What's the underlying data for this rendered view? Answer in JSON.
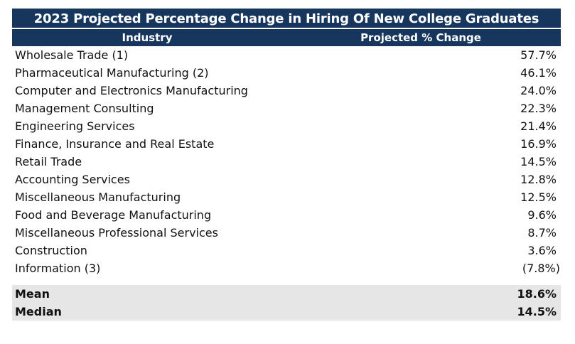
{
  "chart_data": {
    "type": "table",
    "title": "2023 Projected Percentage Change in Hiring Of New College Graduates",
    "columns": [
      "Industry",
      "Projected % Change"
    ],
    "rows": [
      {
        "industry": "Wholesale Trade (1)",
        "value": 57.7,
        "display": "57.7%"
      },
      {
        "industry": "Pharmaceutical Manufacturing (2)",
        "value": 46.1,
        "display": "46.1%"
      },
      {
        "industry": "Computer and Electronics Manufacturing",
        "value": 24.0,
        "display": "24.0%"
      },
      {
        "industry": "Management Consulting",
        "value": 22.3,
        "display": "22.3%"
      },
      {
        "industry": "Engineering Services",
        "value": 21.4,
        "display": "21.4%"
      },
      {
        "industry": "Finance, Insurance and Real Estate",
        "value": 16.9,
        "display": "16.9%"
      },
      {
        "industry": "Retail Trade",
        "value": 14.5,
        "display": "14.5%"
      },
      {
        "industry": "Accounting Services",
        "value": 12.8,
        "display": "12.8%"
      },
      {
        "industry": "Miscellaneous Manufacturing",
        "value": 12.5,
        "display": "12.5%"
      },
      {
        "industry": "Food and Beverage Manufacturing",
        "value": 9.6,
        "display": "9.6%"
      },
      {
        "industry": "Miscellaneous Professional Services",
        "value": 8.7,
        "display": "8.7%"
      },
      {
        "industry": "Construction",
        "value": 3.6,
        "display": "3.6%"
      },
      {
        "industry": "Information (3)",
        "value": -7.8,
        "display": "(7.8%)"
      }
    ],
    "summary": [
      {
        "label": "Mean",
        "value": 18.6,
        "display": "18.6%"
      },
      {
        "label": "Median",
        "value": 14.5,
        "display": "14.5%"
      }
    ]
  },
  "colors": {
    "header_background": "#17365d",
    "header_text": "#ffffff",
    "summary_background": "#e6e6e6"
  }
}
